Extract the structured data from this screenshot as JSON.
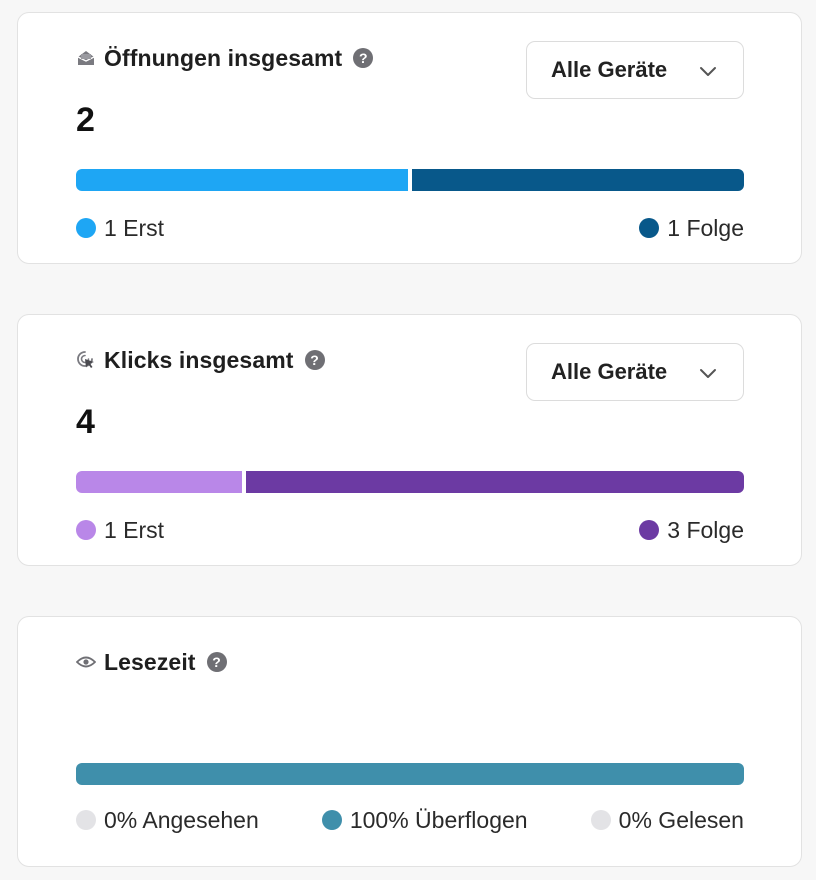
{
  "opens_card": {
    "title": "Öffnungen insgesamt",
    "help": "?",
    "dropdown_label": "Alle Geräte",
    "total": "2",
    "first_label": "1 Erst",
    "followup_label": "1 Folge",
    "first_value": 1,
    "followup_value": 1,
    "colors": {
      "first": "#1ea6f4",
      "followup": "#08588a"
    },
    "icon": "envelope-open-icon"
  },
  "clicks_card": {
    "title": "Klicks insgesamt",
    "help": "?",
    "dropdown_label": "Alle Geräte",
    "total": "4",
    "first_label": "1 Erst",
    "followup_label": "3 Folge",
    "first_value": 1,
    "followup_value": 3,
    "colors": {
      "first": "#b987e8",
      "followup": "#6c3aa3"
    },
    "icon": "cursor-click-icon"
  },
  "reading_card": {
    "title": "Lesezeit",
    "help": "?",
    "viewed_label": "0% Angesehen",
    "skimmed_label": "100% Überflogen",
    "read_label": "0% Gelesen",
    "viewed_percent": 0,
    "skimmed_percent": 100,
    "read_percent": 0,
    "colors": {
      "skimmed": "#3f8fab",
      "inactive": "#e3e3e6"
    },
    "icon": "eye-icon"
  }
}
